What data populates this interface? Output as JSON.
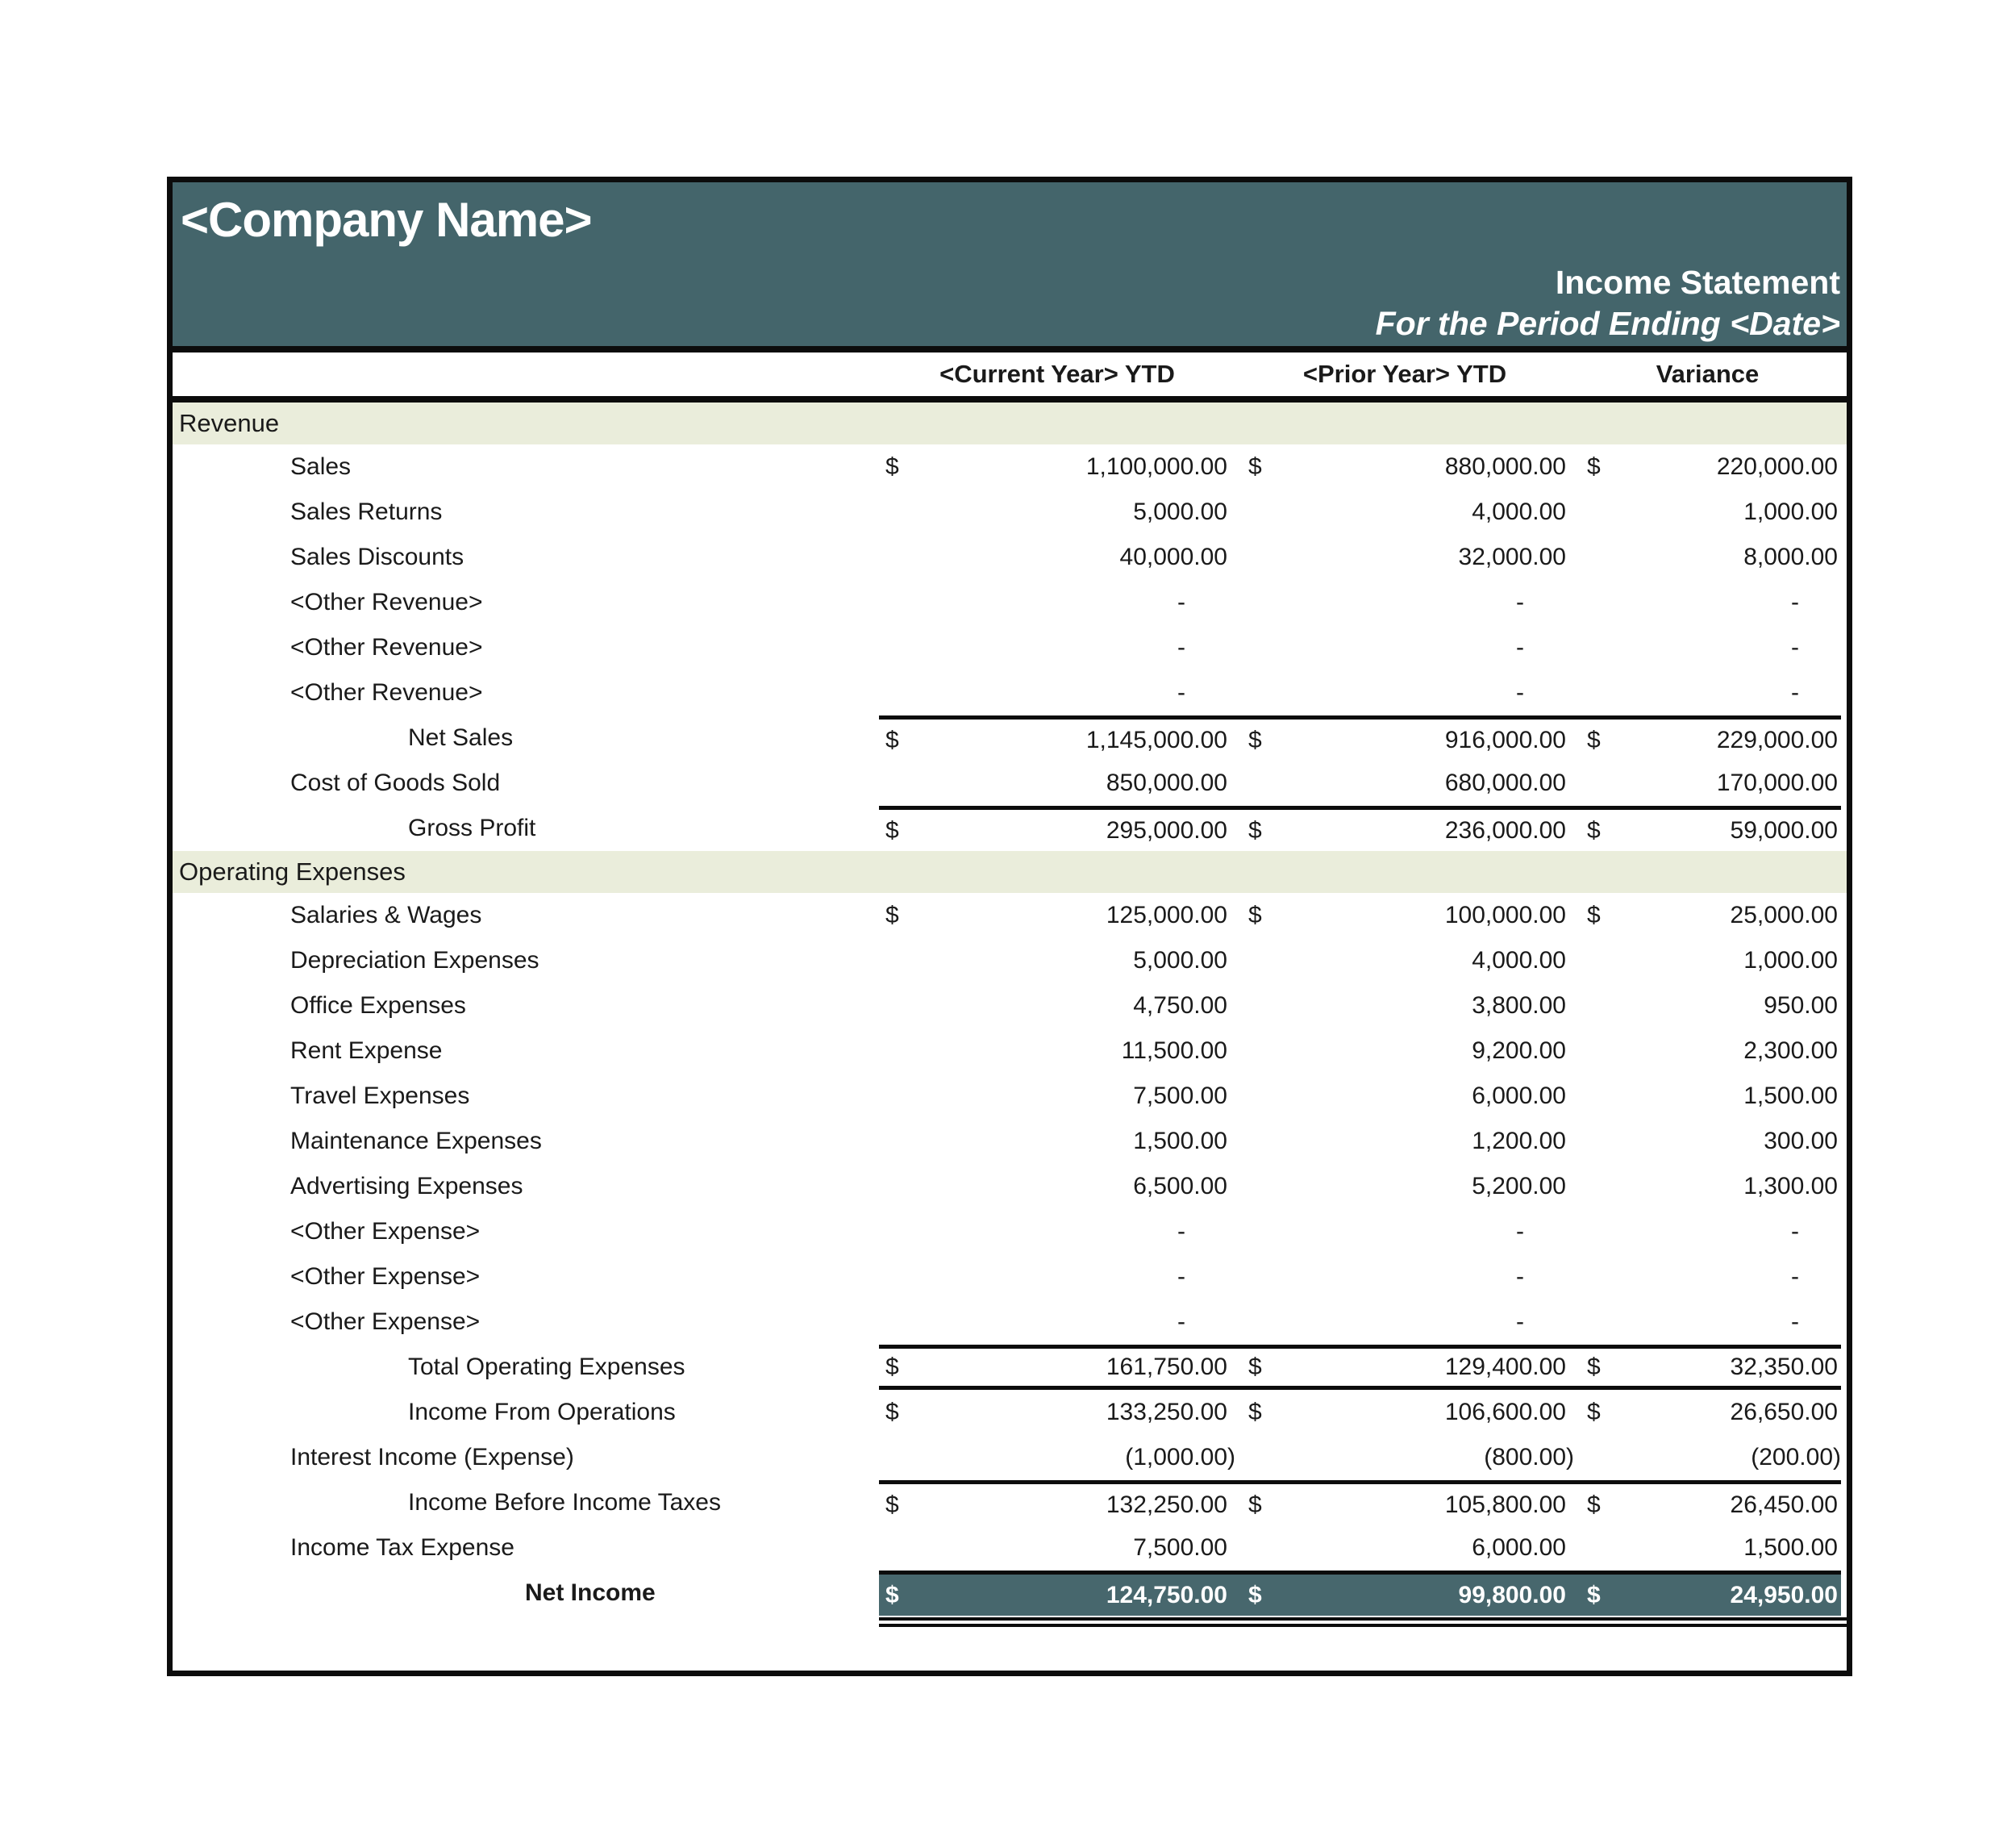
{
  "currency_symbol": "$",
  "header": {
    "company_name": "<Company Name>",
    "report_title": "Income Statement",
    "period_line": "For the Period Ending <Date>"
  },
  "columns": {
    "current_label": "<Current Year> YTD",
    "prior_label": "<Prior Year> YTD",
    "variance_label": "Variance"
  },
  "colors": {
    "header_bg": "#44656B",
    "net_income_bg": "#47676D",
    "section_bg": "#EAEDDB",
    "border_black": "#0C0C0C",
    "text_color": "#1A1A1A",
    "header_text": "#FFFFFF"
  },
  "rows": [
    {
      "type": "section",
      "label": "Revenue"
    },
    {
      "type": "item",
      "label": "Sales",
      "indent": 1,
      "dollar": true,
      "current": "1,100,000.00",
      "prior": "880,000.00",
      "variance": "220,000.00"
    },
    {
      "type": "item",
      "label": "Sales Returns",
      "indent": 1,
      "current": "5,000.00",
      "prior": "4,000.00",
      "variance": "1,000.00"
    },
    {
      "type": "item",
      "label": "Sales Discounts",
      "indent": 1,
      "current": "40,000.00",
      "prior": "32,000.00",
      "variance": "8,000.00"
    },
    {
      "type": "item",
      "label": "<Other Revenue>",
      "indent": 1,
      "dash": true,
      "current": "-",
      "prior": "-",
      "variance": "-"
    },
    {
      "type": "item",
      "label": "<Other Revenue>",
      "indent": 1,
      "dash": true,
      "current": "-",
      "prior": "-",
      "variance": "-"
    },
    {
      "type": "item",
      "label": "<Other Revenue>",
      "indent": 1,
      "dash": true,
      "current": "-",
      "prior": "-",
      "variance": "-"
    },
    {
      "type": "item",
      "label": "Net Sales",
      "indent": 2,
      "dollar": true,
      "border_top": true,
      "current": "1,145,000.00",
      "prior": "916,000.00",
      "variance": "229,000.00"
    },
    {
      "type": "item",
      "label": "Cost of Goods Sold",
      "indent": 1,
      "current": "850,000.00",
      "prior": "680,000.00",
      "variance": "170,000.00"
    },
    {
      "type": "item",
      "label": "Gross Profit",
      "indent": 2,
      "dollar": true,
      "border_top": true,
      "current": "295,000.00",
      "prior": "236,000.00",
      "variance": "59,000.00"
    },
    {
      "type": "section",
      "label": "Operating Expenses"
    },
    {
      "type": "item",
      "label": "Salaries & Wages",
      "indent": 1,
      "dollar": true,
      "current": "125,000.00",
      "prior": "100,000.00",
      "variance": "25,000.00"
    },
    {
      "type": "item",
      "label": "Depreciation Expenses",
      "indent": 1,
      "current": "5,000.00",
      "prior": "4,000.00",
      "variance": "1,000.00"
    },
    {
      "type": "item",
      "label": "Office Expenses",
      "indent": 1,
      "current": "4,750.00",
      "prior": "3,800.00",
      "variance": "950.00"
    },
    {
      "type": "item",
      "label": "Rent Expense",
      "indent": 1,
      "current": "11,500.00",
      "prior": "9,200.00",
      "variance": "2,300.00"
    },
    {
      "type": "item",
      "label": "Travel Expenses",
      "indent": 1,
      "current": "7,500.00",
      "prior": "6,000.00",
      "variance": "1,500.00"
    },
    {
      "type": "item",
      "label": "Maintenance Expenses",
      "indent": 1,
      "current": "1,500.00",
      "prior": "1,200.00",
      "variance": "300.00"
    },
    {
      "type": "item",
      "label": "Advertising Expenses",
      "indent": 1,
      "current": "6,500.00",
      "prior": "5,200.00",
      "variance": "1,300.00"
    },
    {
      "type": "item",
      "label": "<Other Expense>",
      "indent": 1,
      "dash": true,
      "current": "-",
      "prior": "-",
      "variance": "-"
    },
    {
      "type": "item",
      "label": "<Other Expense>",
      "indent": 1,
      "dash": true,
      "current": "-",
      "prior": "-",
      "variance": "-"
    },
    {
      "type": "item",
      "label": "<Other Expense>",
      "indent": 1,
      "dash": true,
      "current": "-",
      "prior": "-",
      "variance": "-"
    },
    {
      "type": "item",
      "label": "Total Operating Expenses",
      "indent": 2,
      "dollar": true,
      "border_top": true,
      "border_bottom": true,
      "current": "161,750.00",
      "prior": "129,400.00",
      "variance": "32,350.00"
    },
    {
      "type": "item",
      "label": "Income From Operations",
      "indent": 2,
      "dollar": true,
      "current": "133,250.00",
      "prior": "106,600.00",
      "variance": "26,650.00"
    },
    {
      "type": "item",
      "label": "Interest Income (Expense)",
      "indent": 1,
      "neg": true,
      "current": "(1,000.00)",
      "prior": "(800.00)",
      "variance": "(200.00)"
    },
    {
      "type": "item",
      "label": "Income Before Income Taxes",
      "indent": 2,
      "dollar": true,
      "border_top": true,
      "current": "132,250.00",
      "prior": "105,800.00",
      "variance": "26,450.00"
    },
    {
      "type": "item",
      "label": "Income Tax Expense",
      "indent": 1,
      "current": "7,500.00",
      "prior": "6,000.00",
      "variance": "1,500.00"
    },
    {
      "type": "net",
      "label": "Net Income",
      "indent": 3,
      "dollar": true,
      "current": "124,750.00",
      "prior": "99,800.00",
      "variance": "24,950.00"
    }
  ]
}
